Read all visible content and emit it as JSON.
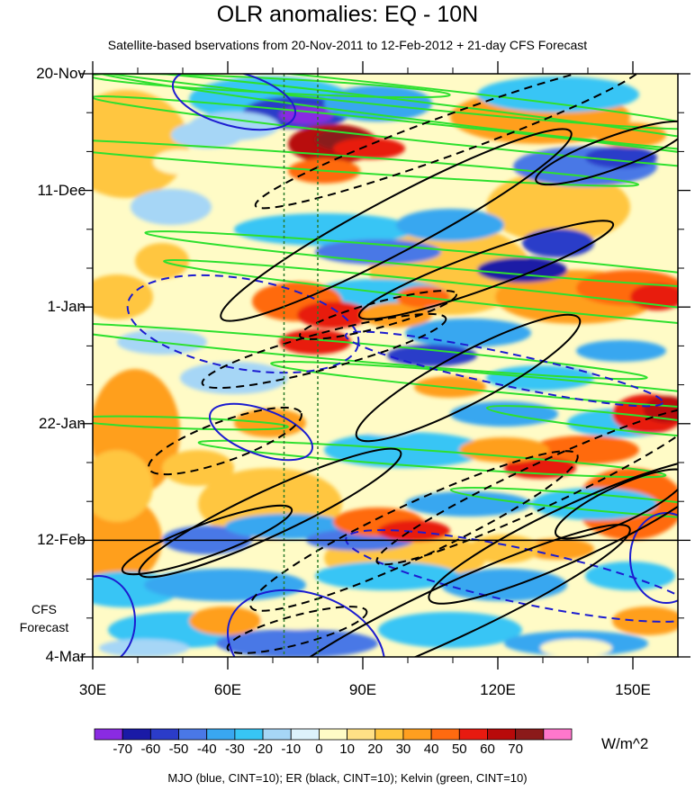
{
  "chart_data": {
    "type": "heatmap",
    "title": "OLR anomalies: EQ - 10N",
    "subtitle": "Satellite-based bservations from 20-Nov-2011 to 12-Feb-2012 + 21-day CFS Forecast",
    "xlim": [
      30,
      160
    ],
    "x_ticks": [
      {
        "value": 30,
        "label": "30E"
      },
      {
        "value": 60,
        "label": "60E"
      },
      {
        "value": 90,
        "label": "90E"
      },
      {
        "value": 120,
        "label": "120E"
      },
      {
        "value": 150,
        "label": "150E"
      }
    ],
    "y_ticks": [
      {
        "day": 0,
        "label": "20-Nov"
      },
      {
        "day": 21,
        "label": "11-Dec"
      },
      {
        "day": 42,
        "label": "1-Jan"
      },
      {
        "day": 63,
        "label": "22-Jan"
      },
      {
        "day": 84,
        "label": "12-Feb"
      },
      {
        "day": 105,
        "label": "4-Mar"
      }
    ],
    "ylim_days": [
      0,
      105
    ],
    "forecast_start_day": 84,
    "forecast_label": [
      "CFS",
      "Forecast"
    ],
    "reference_lines_longitude": [
      72.5,
      80
    ],
    "colorbar": {
      "levels": [
        -70,
        -60,
        -50,
        -40,
        -30,
        -20,
        -10,
        0,
        10,
        20,
        30,
        40,
        50,
        60,
        70
      ],
      "labels": [
        "-70",
        "-60",
        "-50",
        "-40",
        "-30",
        "-20",
        "-10",
        "0",
        "10",
        "20",
        "30",
        "40",
        "50",
        "60",
        "70"
      ],
      "colors": [
        "#8a2be2",
        "#1a1aa6",
        "#2b3cc9",
        "#4a78e6",
        "#39a7f0",
        "#37c5f5",
        "#a6d6f6",
        "#ddf2fb",
        "#fffbc6",
        "#ffe086",
        "#ffc640",
        "#ff9f1f",
        "#ff6a10",
        "#e81a10",
        "#b80a0a",
        "#8b1a1a",
        "#ff77cc"
      ],
      "units": "W/m^2"
    },
    "contour_legend": "MJO (blue, CINT=10); ER (black, CINT=10); Kelvin (green, CINT=10)",
    "contour_colors": {
      "mjo": "#1c1cd0",
      "er": "#000000",
      "kelvin": "#2ee02e"
    }
  }
}
